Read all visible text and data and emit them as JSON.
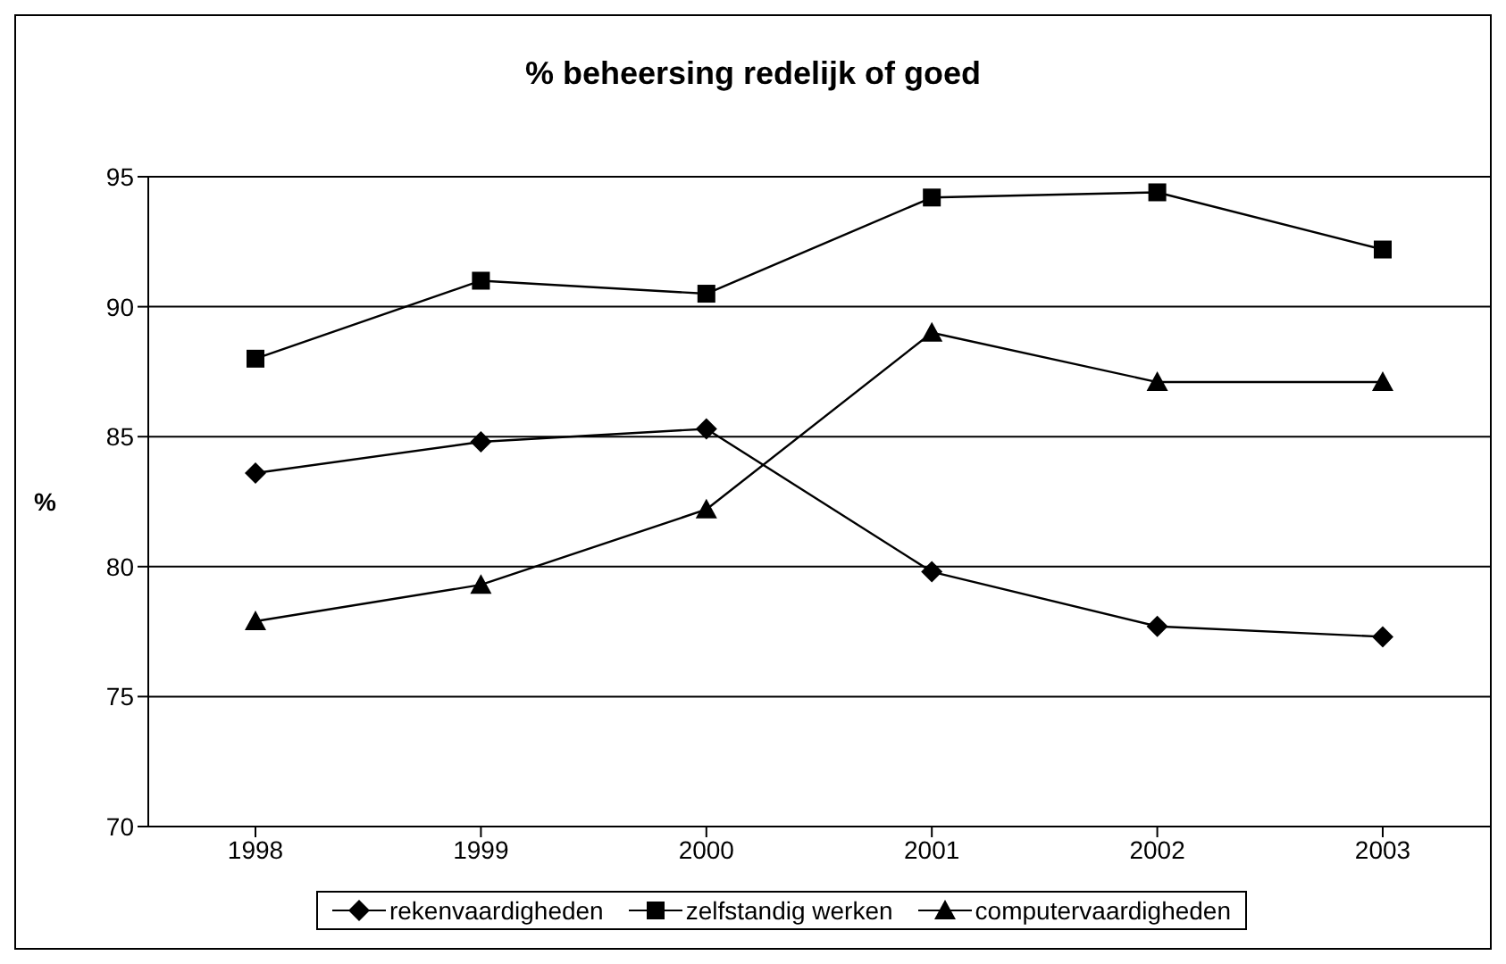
{
  "chart_data": {
    "type": "line",
    "title": "% beheersing redelijk of goed",
    "ylabel": "%",
    "categories": [
      "1998",
      "1999",
      "2000",
      "2001",
      "2002",
      "2003"
    ],
    "series": [
      {
        "name": "rekenvaardigheden",
        "color": "#000000",
        "marker": "diamond",
        "values": [
          83.6,
          84.8,
          85.3,
          79.8,
          77.7,
          77.3
        ]
      },
      {
        "name": "zelfstandig werken",
        "color": "#000000",
        "marker": "square",
        "values": [
          88.0,
          91.0,
          90.5,
          94.2,
          94.4,
          92.2
        ]
      },
      {
        "name": "computervaardigheden",
        "color": "#000000",
        "marker": "triangle",
        "values": [
          77.9,
          79.3,
          82.2,
          89.0,
          87.1,
          87.1
        ]
      }
    ],
    "ylim": [
      70,
      95
    ],
    "yticks": [
      70,
      75,
      80,
      85,
      90,
      95
    ],
    "grid": "y",
    "legend": "bottom"
  }
}
